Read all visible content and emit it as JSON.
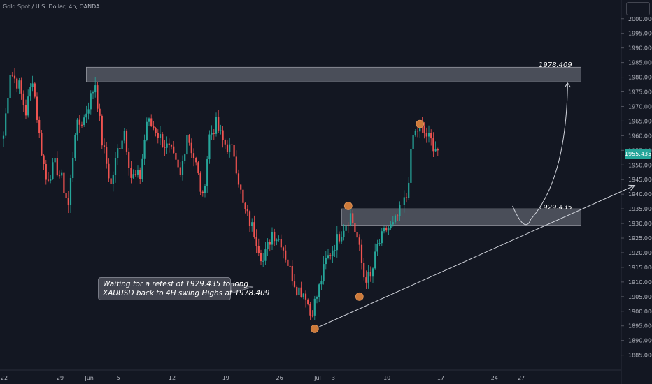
{
  "title": "Gold Spot / U.S. Dollar, 4h, OANDA",
  "callout": {
    "line1": "Waiting for a retest of 1929.435 to long",
    "line2": "XAUUSD back to 4H swing Highs at 1978.409"
  },
  "levels": {
    "upper": "1978.409",
    "lower": "1929.435"
  },
  "current_price": "1955.435",
  "colors": {
    "background": "#131722",
    "up": "#26a69a",
    "down": "#ef5350",
    "zone": "#787b86",
    "marker": "#cd7a3a"
  },
  "chart_data": {
    "type": "candlestick",
    "symbol": "XAUUSD",
    "timeframe": "4h",
    "ylim": [
      1883,
      2004
    ],
    "y_ticks": [
      "1885.000",
      "1890.000",
      "1895.000",
      "1900.000",
      "1905.000",
      "1910.000",
      "1915.000",
      "1920.000",
      "1925.000",
      "1930.000",
      "1935.000",
      "1940.000",
      "1945.000",
      "1950.000",
      "1955.000",
      "1960.000",
      "1965.000",
      "1970.000",
      "1975.000",
      "1980.000",
      "1985.000",
      "1990.000",
      "1995.000",
      "2000.000"
    ],
    "x_ticks": [
      {
        "label": "22",
        "index": 0
      },
      {
        "label": "29",
        "index": 25
      },
      {
        "label": "Jun",
        "index": 38
      },
      {
        "label": "5",
        "index": 51
      },
      {
        "label": "12",
        "index": 75
      },
      {
        "label": "19",
        "index": 99
      },
      {
        "label": "26",
        "index": 123
      },
      {
        "label": "Jul",
        "index": 140
      },
      {
        "label": "3",
        "index": 147
      },
      {
        "label": "10",
        "index": 171
      },
      {
        "label": "17",
        "index": 195
      },
      {
        "label": "24",
        "index": 219
      },
      {
        "label": "27",
        "index": 231
      }
    ],
    "anchors": [
      {
        "i": 0,
        "p": 1960
      },
      {
        "i": 3,
        "p": 1982
      },
      {
        "i": 7,
        "p": 1977
      },
      {
        "i": 10,
        "p": 1968
      },
      {
        "i": 13,
        "p": 1980
      },
      {
        "i": 16,
        "p": 1960
      },
      {
        "i": 19,
        "p": 1945
      },
      {
        "i": 23,
        "p": 1950
      },
      {
        "i": 26,
        "p": 1945
      },
      {
        "i": 29,
        "p": 1936
      },
      {
        "i": 32,
        "p": 1962
      },
      {
        "i": 36,
        "p": 1966
      },
      {
        "i": 41,
        "p": 1978
      },
      {
        "i": 44,
        "p": 1958
      },
      {
        "i": 48,
        "p": 1943
      },
      {
        "i": 51,
        "p": 1955
      },
      {
        "i": 54,
        "p": 1962
      },
      {
        "i": 57,
        "p": 1946
      },
      {
        "i": 61,
        "p": 1946
      },
      {
        "i": 64,
        "p": 1965
      },
      {
        "i": 68,
        "p": 1962
      },
      {
        "i": 71,
        "p": 1958
      },
      {
        "i": 75,
        "p": 1954
      },
      {
        "i": 79,
        "p": 1946
      },
      {
        "i": 82,
        "p": 1961
      },
      {
        "i": 86,
        "p": 1950
      },
      {
        "i": 89,
        "p": 1938
      },
      {
        "i": 92,
        "p": 1960
      },
      {
        "i": 95,
        "p": 1964
      },
      {
        "i": 98,
        "p": 1958
      },
      {
        "i": 103,
        "p": 1954
      },
      {
        "i": 107,
        "p": 1936
      },
      {
        "i": 112,
        "p": 1927
      },
      {
        "i": 116,
        "p": 1917
      },
      {
        "i": 120,
        "p": 1927
      },
      {
        "i": 124,
        "p": 1924
      },
      {
        "i": 128,
        "p": 1914
      },
      {
        "i": 131,
        "p": 1908
      },
      {
        "i": 135,
        "p": 1906
      },
      {
        "i": 137,
        "p": 1899
      },
      {
        "i": 140,
        "p": 1905
      },
      {
        "i": 144,
        "p": 1917
      },
      {
        "i": 148,
        "p": 1923
      },
      {
        "i": 152,
        "p": 1929
      },
      {
        "i": 155,
        "p": 1933
      },
      {
        "i": 158,
        "p": 1925
      },
      {
        "i": 161,
        "p": 1912
      },
      {
        "i": 164,
        "p": 1911
      },
      {
        "i": 167,
        "p": 1922
      },
      {
        "i": 171,
        "p": 1928
      },
      {
        "i": 174,
        "p": 1929
      },
      {
        "i": 177,
        "p": 1934
      },
      {
        "i": 180,
        "p": 1939
      },
      {
        "i": 183,
        "p": 1960
      },
      {
        "i": 186,
        "p": 1963
      },
      {
        "i": 189,
        "p": 1960
      },
      {
        "i": 192,
        "p": 1957
      },
      {
        "i": 194,
        "p": 1955
      }
    ],
    "zones": [
      {
        "from_index": 37,
        "to_index": 258,
        "low": 1978.409,
        "high": 1983.4
      },
      {
        "from_index": 151,
        "to_index": 258,
        "low": 1929.435,
        "high": 1935.0
      }
    ],
    "trendline": {
      "from": {
        "index": 139,
        "price": 1894
      },
      "to": {
        "index": 282,
        "price": 1943
      }
    },
    "markers": [
      {
        "index": 139,
        "price": 1894
      },
      {
        "index": 154,
        "price": 1936
      },
      {
        "index": 159,
        "price": 1905
      },
      {
        "index": 186,
        "price": 1964
      }
    ],
    "projection": {
      "from": {
        "index": 233,
        "price": 1929.5
      },
      "to": {
        "index": 252,
        "price": 1978
      }
    }
  }
}
